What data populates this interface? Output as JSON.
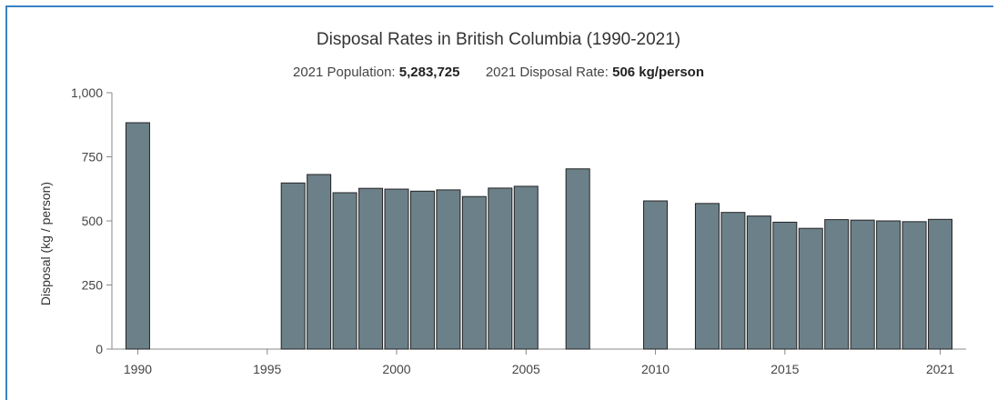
{
  "chart_data": {
    "type": "bar",
    "title": "Disposal Rates in British Columbia (1990-2021)",
    "subtitle": {
      "population_label": "2021 Population:",
      "population_value": "5,283,725",
      "rate_label": "2021 Disposal Rate:",
      "rate_value": "506 kg/person"
    },
    "xlabel": "",
    "ylabel": "Disposal (kg / person)",
    "xlim": [
      1989,
      2022
    ],
    "ylim": [
      0,
      1000
    ],
    "yticks": [
      0,
      250,
      500,
      750,
      1000
    ],
    "ytick_labels": [
      "0",
      "250",
      "500",
      "750",
      "1,000"
    ],
    "xticks": [
      1990,
      1995,
      2000,
      2005,
      2010,
      2015,
      2021
    ],
    "xtick_labels": [
      "1990",
      "1995",
      "2000",
      "2005",
      "2010",
      "2015",
      "2021"
    ],
    "grid": false,
    "bar_color": "#6c8089",
    "bar_edge_color": "#222222",
    "data": [
      {
        "year": 1990,
        "value": 883
      },
      {
        "year": 1996,
        "value": 648
      },
      {
        "year": 1997,
        "value": 681
      },
      {
        "year": 1998,
        "value": 610
      },
      {
        "year": 1999,
        "value": 627
      },
      {
        "year": 2000,
        "value": 624
      },
      {
        "year": 2001,
        "value": 616
      },
      {
        "year": 2002,
        "value": 621
      },
      {
        "year": 2003,
        "value": 595
      },
      {
        "year": 2004,
        "value": 628
      },
      {
        "year": 2005,
        "value": 635
      },
      {
        "year": 2007,
        "value": 703
      },
      {
        "year": 2010,
        "value": 578
      },
      {
        "year": 2012,
        "value": 568
      },
      {
        "year": 2013,
        "value": 533
      },
      {
        "year": 2014,
        "value": 519
      },
      {
        "year": 2015,
        "value": 495
      },
      {
        "year": 2016,
        "value": 471
      },
      {
        "year": 2017,
        "value": 505
      },
      {
        "year": 2018,
        "value": 503
      },
      {
        "year": 2019,
        "value": 500
      },
      {
        "year": 2020,
        "value": 497
      },
      {
        "year": 2021,
        "value": 506
      }
    ]
  }
}
